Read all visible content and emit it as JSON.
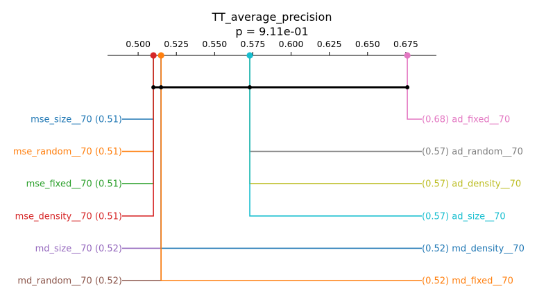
{
  "chart_data": {
    "type": "critical-difference",
    "title": "TT_average_precision",
    "subtitle": "p = 9.11e-01",
    "axis": {
      "range": [
        0.48,
        0.695
      ],
      "ticks": [
        0.5,
        0.525,
        0.55,
        0.575,
        0.6,
        0.625,
        0.65,
        0.675
      ],
      "tick_labels": [
        "0.500",
        "0.525",
        "0.550",
        "0.575",
        "0.600",
        "0.625",
        "0.650",
        "0.675"
      ],
      "position": "top"
    },
    "cliques": [
      {
        "from": 0.51,
        "to": 0.676
      }
    ],
    "left_entries": [
      {
        "label": "mse_size__70 (0.51)",
        "value": 0.51,
        "color": "#1f77b4"
      },
      {
        "label": "mse_random__70 (0.51)",
        "value": 0.51,
        "color": "#ff7f0e"
      },
      {
        "label": "mse_fixed__70 (0.51)",
        "value": 0.51,
        "color": "#2ca02c"
      },
      {
        "label": "mse_density__70 (0.51)",
        "value": 0.51,
        "color": "#d62728"
      },
      {
        "label": "md_size__70 (0.52)",
        "value": 0.515,
        "color": "#9467bd"
      },
      {
        "label": "md_random__70 (0.52)",
        "value": 0.515,
        "color": "#8c564b"
      }
    ],
    "right_entries": [
      {
        "label": "(0.68) ad_fixed__70",
        "value": 0.676,
        "color": "#e377c2"
      },
      {
        "label": "(0.57) ad_random__70",
        "value": 0.573,
        "color": "#7f7f7f"
      },
      {
        "label": "(0.57) ad_density__70",
        "value": 0.573,
        "color": "#bcbd22"
      },
      {
        "label": "(0.57) ad_size__70",
        "value": 0.573,
        "color": "#17becf"
      },
      {
        "label": "(0.52) md_density__70",
        "value": 0.515,
        "color": "#1f77b4"
      },
      {
        "label": "(0.52) md_fixed__70",
        "value": 0.515,
        "color": "#ff7f0e"
      }
    ],
    "markers": [
      {
        "value": 0.51,
        "color": "#d62728"
      },
      {
        "value": 0.515,
        "color": "#ff7f0e"
      },
      {
        "value": 0.573,
        "color": "#17becf"
      },
      {
        "value": 0.676,
        "color": "#e377c2"
      }
    ]
  }
}
